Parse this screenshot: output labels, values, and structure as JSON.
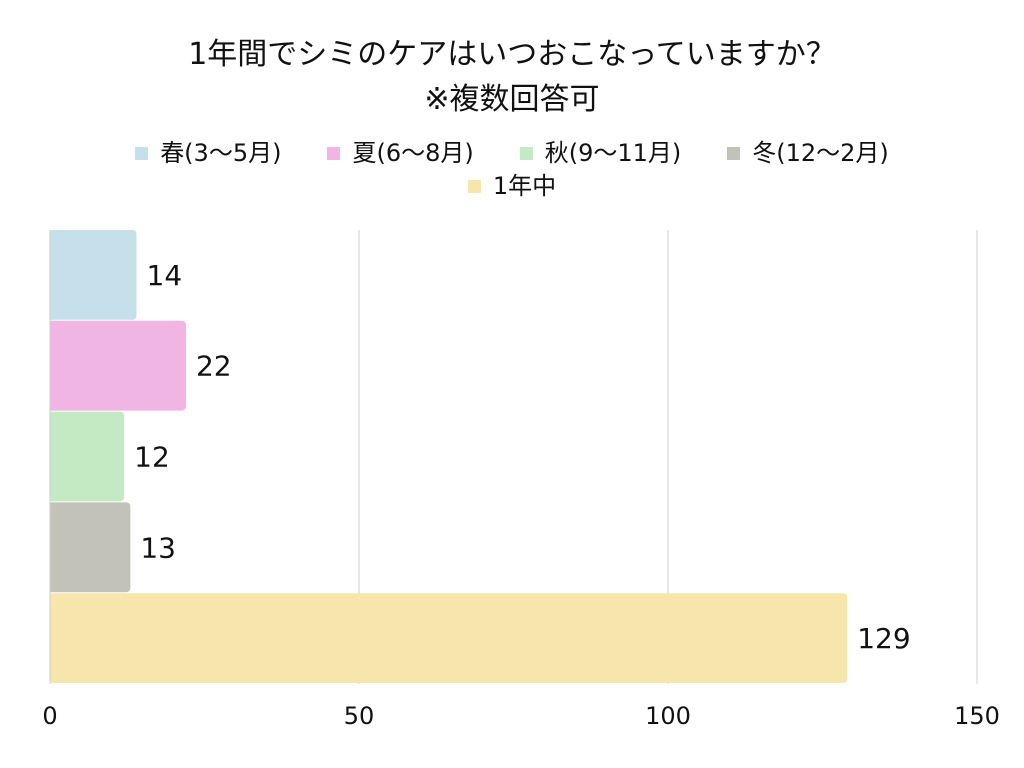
{
  "chart_data": {
    "type": "bar",
    "orientation": "horizontal",
    "title": "1年間でシミのケアはいつおこなっていますか？",
    "subtitle": "※複数回答可",
    "categories": [
      "春(3〜5月)",
      "夏(6〜8月)",
      "秋(9〜11月)",
      "冬(12〜2月)",
      "1年中"
    ],
    "values": [
      14,
      22,
      12,
      13,
      129
    ],
    "colors": [
      "#c5e0ea",
      "#f0b5e2",
      "#c3eac3",
      "#c2c2b8",
      "#f7e6ab"
    ],
    "xlim": [
      0,
      150
    ],
    "xticks": [
      0,
      50,
      100,
      150
    ],
    "grid": true,
    "legend_position": "top-center",
    "data_labels": true
  }
}
